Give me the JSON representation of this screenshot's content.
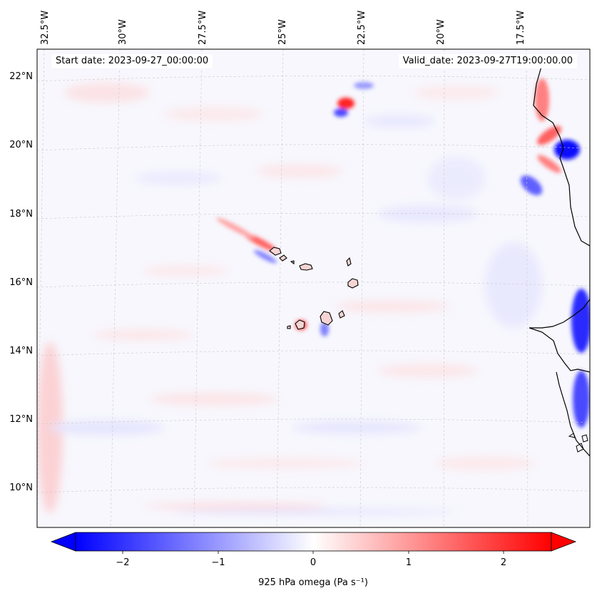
{
  "header": {
    "start_date": "Start date: 2023-09-27_00:00:00",
    "valid_date": "Valid_date: 2023-09-27T19:00:00.00"
  },
  "map": {
    "lon_labels": [
      "32.5°W",
      "30°W",
      "27.5°W",
      "25°W",
      "22.5°W",
      "20°W",
      "17.5°W"
    ],
    "lat_labels": [
      "22°N",
      "20°N",
      "18°N",
      "16°N",
      "14°N",
      "12°N",
      "10°N"
    ],
    "field": "omega",
    "colormap": "bwr",
    "gridlines": true
  },
  "colorbar": {
    "label": "925 hPa omega (Pa s⁻¹)",
    "ticks": [
      "−2",
      "−1",
      "0",
      "1",
      "2"
    ],
    "range": [
      -2.6,
      2.6
    ],
    "extend": "both"
  }
}
